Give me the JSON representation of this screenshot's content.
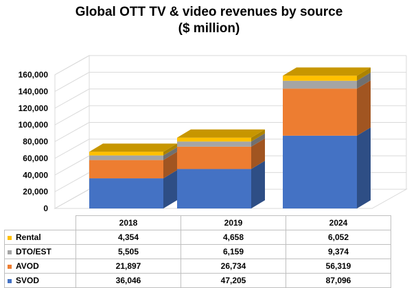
{
  "chart_data": {
    "type": "bar",
    "stacked": true,
    "three_d": true,
    "title": "Global OTT TV & video revenues by source",
    "subtitle": "($ million)",
    "categories": [
      "2018",
      "2019",
      "2024"
    ],
    "ylim": [
      0,
      160000
    ],
    "y_ticks": [
      "0",
      "20,000",
      "40,000",
      "60,000",
      "80,000",
      "100,000",
      "120,000",
      "140,000",
      "160,000"
    ],
    "grid": true,
    "legend_placement": "data table, left",
    "series": [
      {
        "name": "SVOD",
        "values": [
          36046,
          47205,
          87096
        ],
        "color": "#4472C4",
        "labels": [
          "36,046",
          "47,205",
          "87,096"
        ]
      },
      {
        "name": "AVOD",
        "values": [
          21897,
          26734,
          56319
        ],
        "color": "#ED7D31",
        "labels": [
          "21,897",
          "26,734",
          "56,319"
        ]
      },
      {
        "name": "DTO/EST",
        "values": [
          5505,
          6159,
          9374
        ],
        "color": "#A5A5A5",
        "labels": [
          "5,505",
          "6,159",
          "9,374"
        ]
      },
      {
        "name": "Rental",
        "values": [
          4354,
          4658,
          6052
        ],
        "color": "#FFC000",
        "labels": [
          "4,354",
          "4,658",
          "6,052"
        ]
      }
    ],
    "table_row_order": [
      "Rental",
      "DTO/EST",
      "AVOD",
      "SVOD"
    ]
  }
}
